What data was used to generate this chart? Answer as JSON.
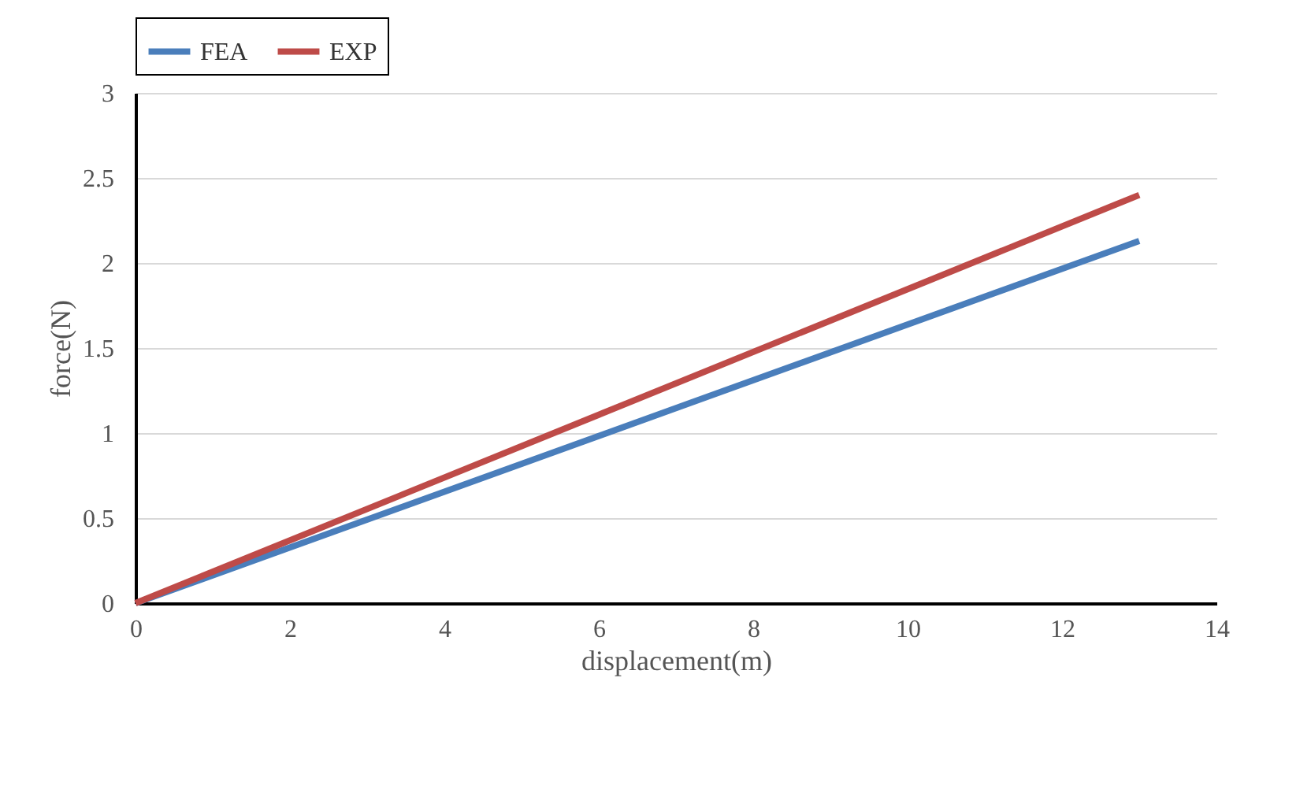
{
  "chart_data": {
    "type": "line",
    "xlabel": "displacement(m)",
    "ylabel": "force(N)",
    "series": [
      {
        "name": "FEA",
        "color": "#4a7ebb",
        "values": [
          0,
          2.13
        ]
      },
      {
        "name": "EXP",
        "color": "#be4b48",
        "values": [
          0,
          2.4
        ]
      }
    ],
    "x": [
      0,
      13
    ],
    "xlim": [
      0,
      14
    ],
    "xticks": [
      0,
      2,
      4,
      6,
      8,
      10,
      12,
      14
    ],
    "ylim": [
      0,
      3
    ],
    "yticks": [
      0,
      0.5,
      1,
      1.5,
      2,
      2.5,
      3
    ],
    "grid": "y",
    "legend": "top",
    "marker": "none",
    "line_style": "solid"
  }
}
